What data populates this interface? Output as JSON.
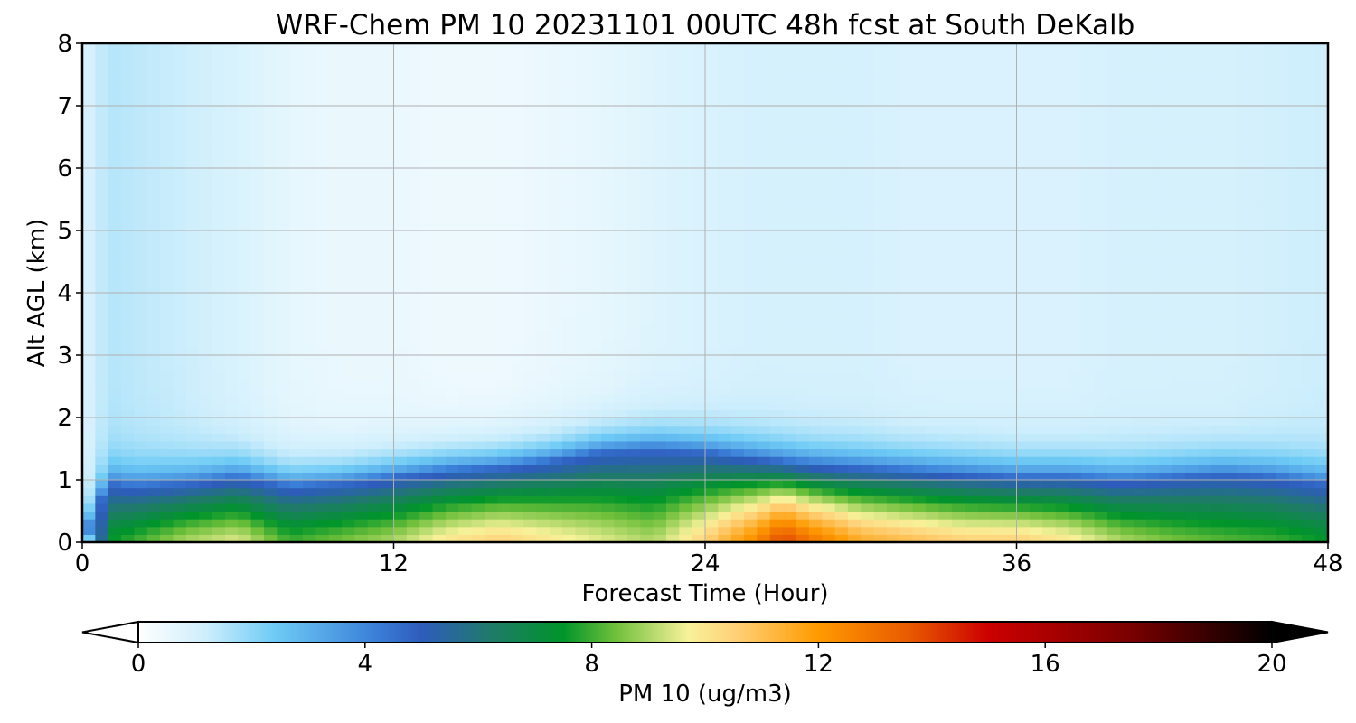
{
  "chart_data": {
    "type": "heatmap",
    "title": "WRF-Chem PM 10  20231101 00UTC 48h fcst at South DeKalb",
    "xlabel": "Forecast Time (Hour)",
    "ylabel": "Alt AGL (km)",
    "xlim": [
      0,
      48
    ],
    "ylim": [
      0,
      8
    ],
    "x_ticks": [
      "0",
      "12",
      "24",
      "36",
      "48"
    ],
    "y_ticks": [
      "0",
      "1",
      "2",
      "3",
      "4",
      "5",
      "6",
      "7",
      "8"
    ],
    "grid": true,
    "colorbar": {
      "label": "PM 10  (ug/m3)",
      "range": [
        0,
        20
      ],
      "ticks": [
        "0",
        "4",
        "8",
        "12",
        "16",
        "20"
      ],
      "extend": "both",
      "colors": [
        {
          "v": 0,
          "c": "#ffffff"
        },
        {
          "v": 1.2,
          "c": "#cdeefc"
        },
        {
          "v": 2.4,
          "c": "#6ecbf5"
        },
        {
          "v": 4.2,
          "c": "#3a7fd8"
        },
        {
          "v": 5.0,
          "c": "#2e5cbc"
        },
        {
          "v": 6.2,
          "c": "#1f7a6a"
        },
        {
          "v": 7.5,
          "c": "#00952a"
        },
        {
          "v": 8.4,
          "c": "#6dbf3a"
        },
        {
          "v": 9.7,
          "c": "#f7f29a"
        },
        {
          "v": 10.5,
          "c": "#ffd27a"
        },
        {
          "v": 12.0,
          "c": "#ff9a00"
        },
        {
          "v": 13.6,
          "c": "#e85a00"
        },
        {
          "v": 15.0,
          "c": "#cc0000"
        },
        {
          "v": 17.5,
          "c": "#7a0000"
        },
        {
          "v": 20.0,
          "c": "#000000"
        }
      ]
    },
    "time_hours": [
      0,
      1,
      2,
      4,
      6,
      8,
      10,
      12,
      14,
      16,
      18,
      20,
      22,
      24,
      26,
      27,
      28,
      30,
      32,
      34,
      36,
      38,
      40,
      42,
      44,
      46,
      48
    ],
    "boundary_layer_top_km": [
      0.0,
      0.95,
      0.9,
      0.95,
      1.05,
      0.9,
      0.95,
      1.05,
      1.15,
      1.2,
      1.3,
      1.45,
      1.5,
      1.45,
      1.35,
      1.3,
      1.25,
      1.2,
      1.15,
      1.1,
      1.05,
      1.05,
      1.0,
      1.05,
      1.1,
      1.05,
      0.95
    ],
    "surface_pm10_ugm3": [
      0.0,
      7.5,
      8.0,
      9.0,
      9.5,
      8.0,
      8.5,
      9.0,
      10.0,
      10.5,
      10.0,
      9.5,
      9.0,
      10.5,
      12.5,
      14.0,
      13.0,
      11.5,
      11.0,
      10.5,
      10.5,
      10.0,
      9.0,
      8.5,
      8.2,
      8.0,
      7.5
    ],
    "upper_air_pm10_ugm3": [
      0.8,
      1.5,
      1.4,
      1.2,
      0.9,
      0.6,
      0.5,
      0.5,
      0.4,
      0.4,
      0.5,
      0.6,
      0.8,
      0.9,
      1.0,
      1.0,
      1.0,
      1.0,
      0.9,
      0.9,
      0.9,
      0.9,
      1.0,
      1.0,
      1.0,
      1.1,
      1.2
    ]
  }
}
